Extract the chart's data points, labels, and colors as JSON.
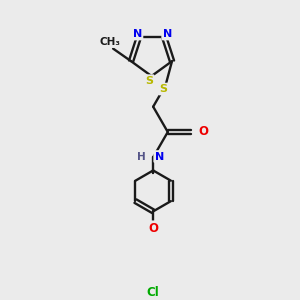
{
  "background_color": "#ebebeb",
  "bond_color": "#1a1a1a",
  "atom_colors": {
    "S": "#b8b800",
    "N": "#0000ee",
    "O": "#ee0000",
    "Cl": "#00aa00",
    "H": "#555588",
    "C": "#1a1a1a"
  },
  "figsize": [
    3.0,
    3.0
  ],
  "dpi": 100
}
